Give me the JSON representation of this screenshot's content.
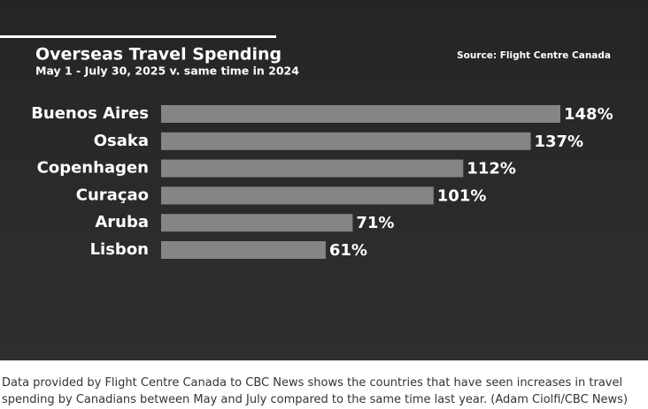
{
  "chart_data": {
    "type": "bar",
    "orientation": "horizontal",
    "title": "Overseas Travel Spending",
    "subtitle": "May 1 - July 30, 2025 v. same time in 2024",
    "source": "Source: Flight Centre Canada",
    "categories": [
      "Buenos Aires",
      "Osaka",
      "Copenhagen",
      "Curaçao",
      "Aruba",
      "Lisbon"
    ],
    "values": [
      148,
      137,
      112,
      101,
      71,
      61
    ],
    "value_labels": [
      "148%",
      "137%",
      "112%",
      "101%",
      "71%",
      "61%"
    ],
    "color": "#858585"
  },
  "caption": "Data provided by Flight Centre Canada to CBC News shows the countries that have seen increases in travel spending by Canadians between May and July compared to the same time last year. (Adam Ciolfi/CBC News)"
}
